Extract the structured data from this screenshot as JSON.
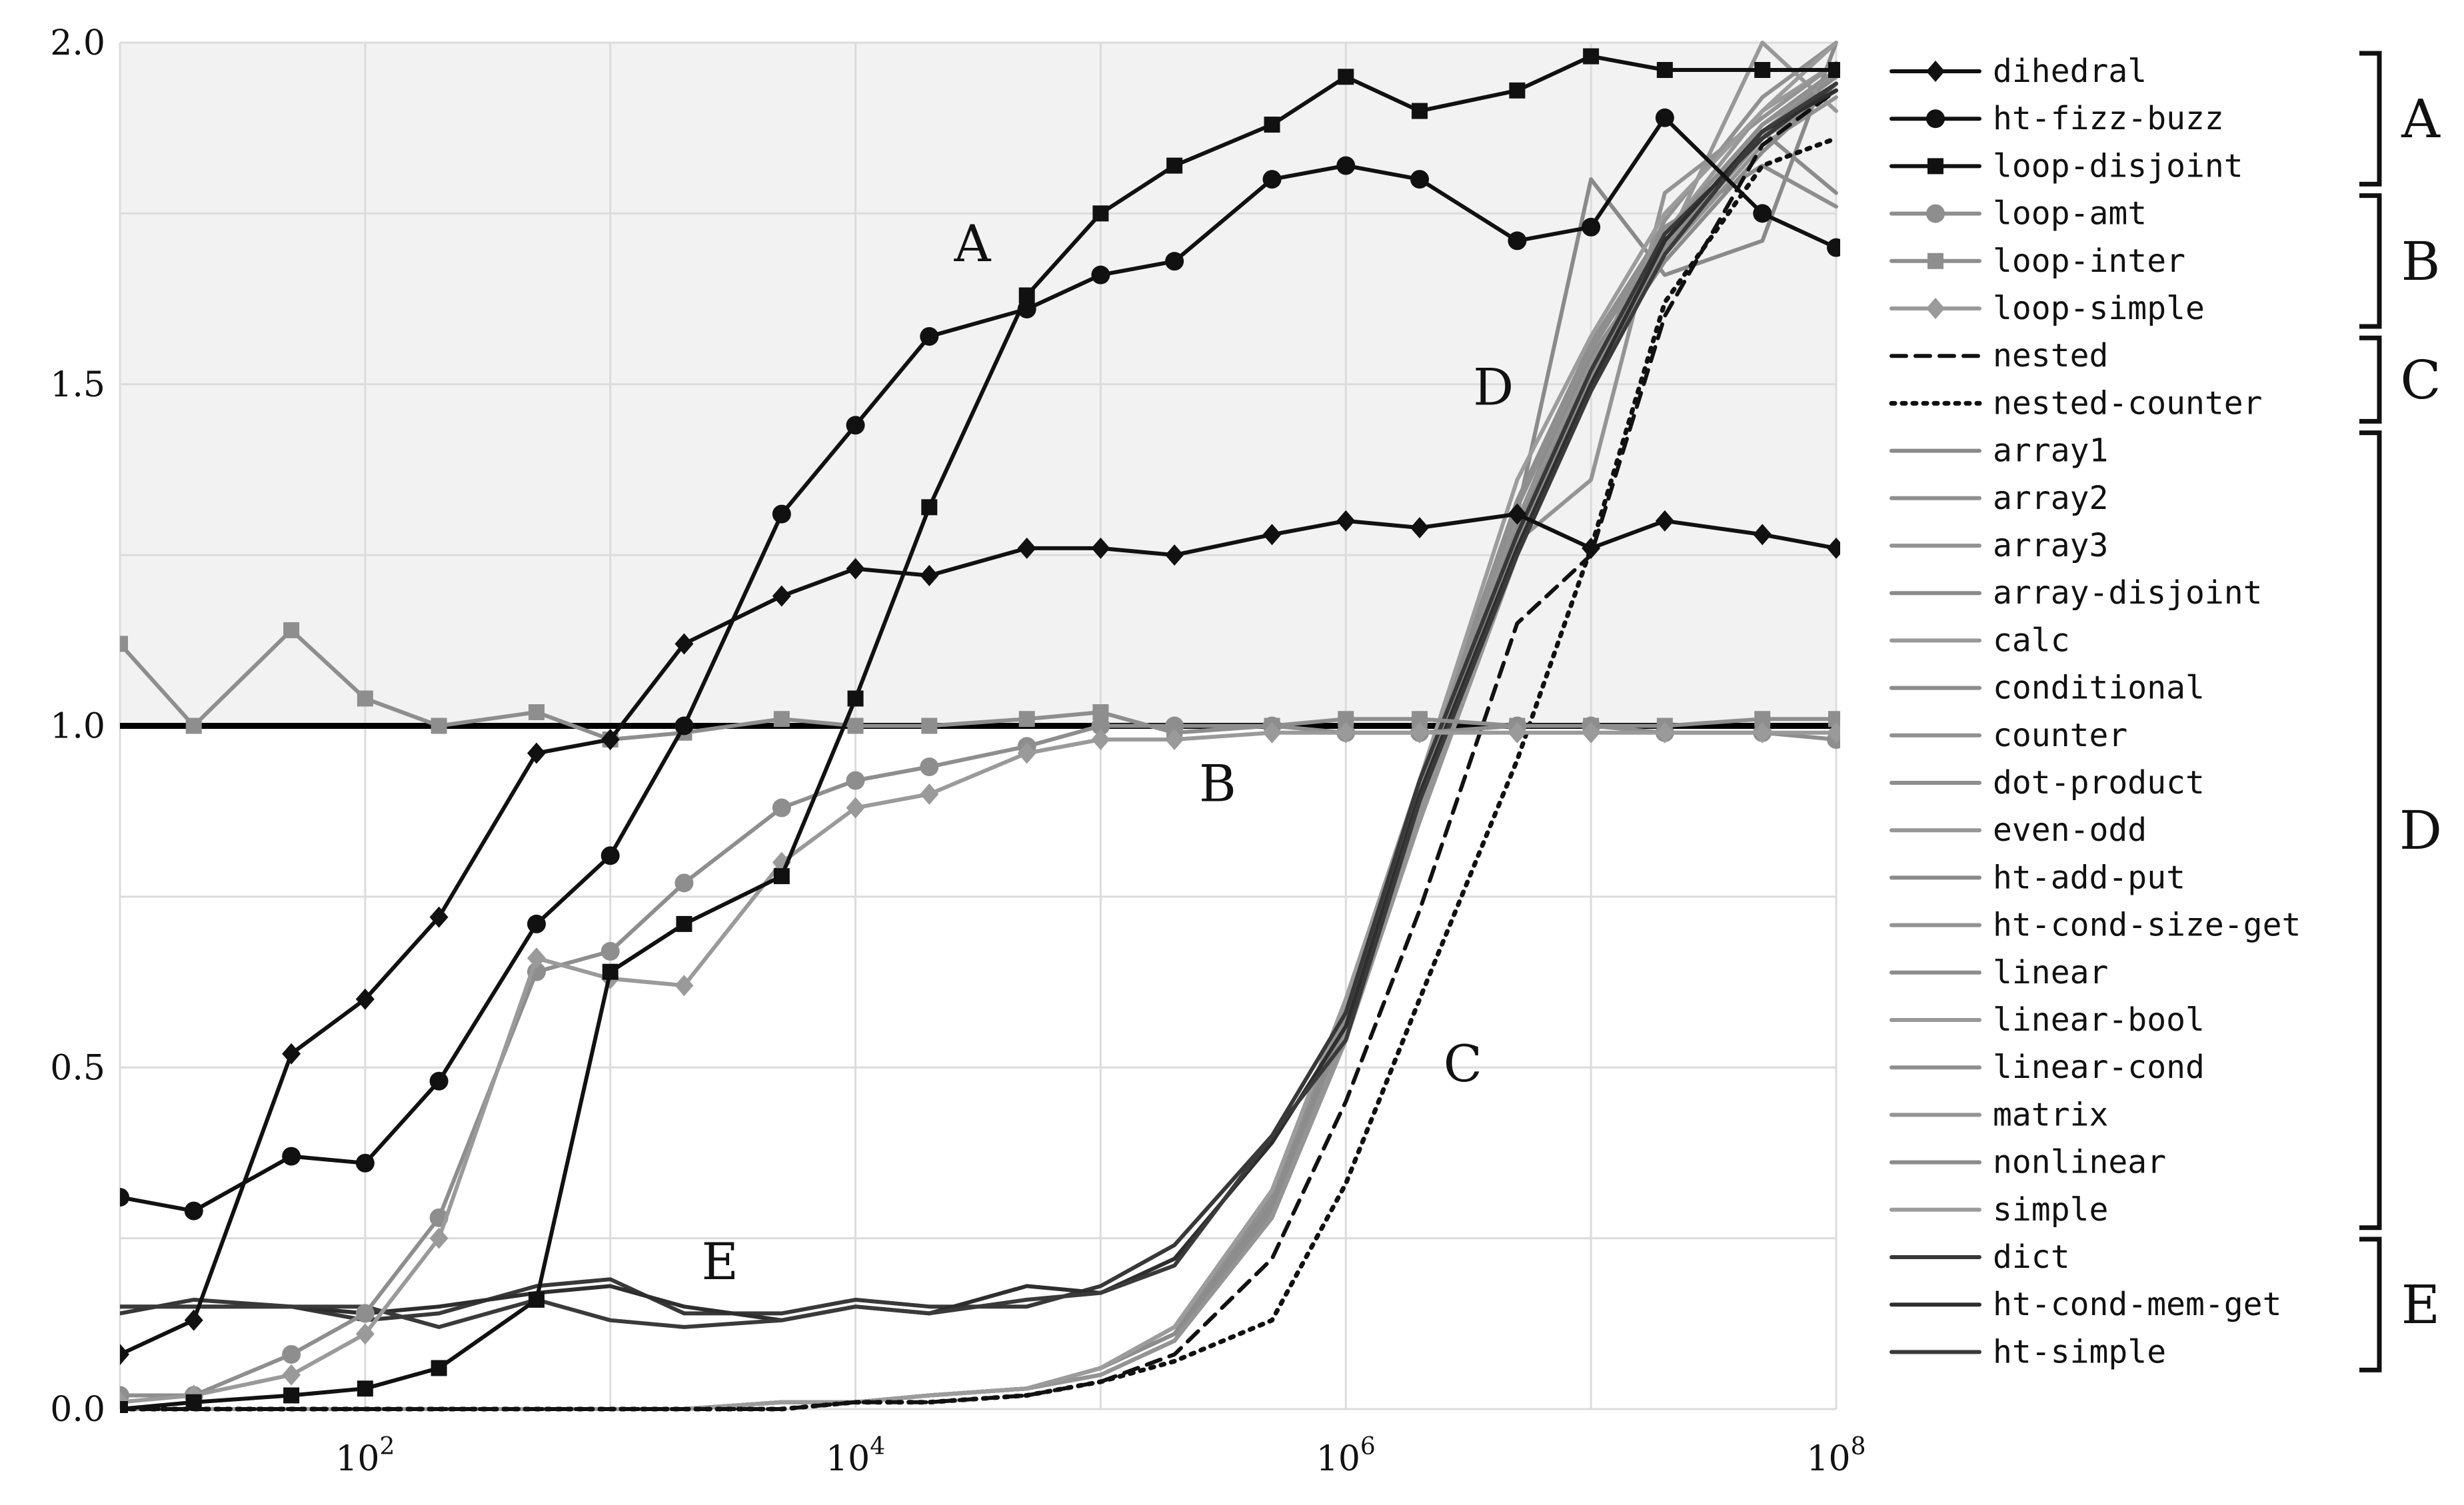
{
  "chart_data": {
    "type": "line",
    "x_scale": "log",
    "xlim": [
      10,
      100000000
    ],
    "ylim": [
      0,
      2
    ],
    "grid": true,
    "shaded_region_above": 1.0,
    "reference_line_y": 1.0,
    "legend_position": "right",
    "x_ticks": [
      "10^2",
      "10^4",
      "10^6",
      "10^8"
    ],
    "x_tick_values": [
      100,
      10000,
      1000000,
      100000000
    ],
    "y_ticks": [
      "0.0",
      "0.5",
      "1.0",
      "1.5",
      "2.0"
    ],
    "y_tick_values": [
      0,
      0.5,
      1.0,
      1.5,
      2.0
    ],
    "x": [
      10,
      20,
      50,
      100,
      200,
      500,
      1000,
      2000,
      5000,
      10000,
      20000,
      50000,
      100000,
      200000,
      500000,
      1000000,
      2000000,
      5000000,
      10000000,
      20000000,
      50000000,
      100000000
    ],
    "series": [
      {
        "name": "dihedral",
        "group": "A",
        "color": "#111111",
        "dash": "solid",
        "marker": "diamond",
        "values": [
          0.08,
          0.13,
          0.52,
          0.6,
          0.72,
          0.96,
          0.98,
          1.12,
          1.19,
          1.23,
          1.22,
          1.26,
          1.26,
          1.25,
          1.28,
          1.3,
          1.29,
          1.31,
          1.26,
          1.3,
          1.28,
          1.26
        ]
      },
      {
        "name": "ht-fizz-buzz",
        "group": "A",
        "color": "#111111",
        "dash": "solid",
        "marker": "circle",
        "values": [
          0.31,
          0.29,
          0.37,
          0.36,
          0.48,
          0.71,
          0.81,
          1.0,
          1.31,
          1.44,
          1.57,
          1.61,
          1.66,
          1.68,
          1.8,
          1.82,
          1.8,
          1.71,
          1.73,
          1.89,
          1.75,
          1.7
        ]
      },
      {
        "name": "loop-disjoint",
        "group": "A",
        "color": "#111111",
        "dash": "solid",
        "marker": "square",
        "values": [
          0.0,
          0.01,
          0.02,
          0.03,
          0.06,
          0.16,
          0.64,
          0.71,
          0.78,
          1.04,
          1.32,
          1.63,
          1.75,
          1.82,
          1.88,
          1.95,
          1.9,
          1.93,
          1.98,
          1.96,
          1.96,
          1.96
        ]
      },
      {
        "name": "loop-amt",
        "group": "B",
        "color": "#8e8e8e",
        "dash": "solid",
        "marker": "circle",
        "values": [
          0.02,
          0.02,
          0.08,
          0.14,
          0.28,
          0.64,
          0.67,
          0.77,
          0.88,
          0.92,
          0.94,
          0.97,
          1.0,
          1.0,
          1.0,
          0.99,
          0.99,
          1.0,
          1.0,
          0.99,
          0.99,
          0.98
        ]
      },
      {
        "name": "loop-inter",
        "group": "B",
        "color": "#8e8e8e",
        "dash": "solid",
        "marker": "square",
        "values": [
          1.12,
          1.0,
          1.14,
          1.04,
          1.0,
          1.02,
          0.98,
          0.99,
          1.01,
          1.0,
          1.0,
          1.01,
          1.02,
          0.99,
          1.0,
          1.01,
          1.01,
          1.0,
          1.0,
          1.0,
          1.01,
          1.01
        ]
      },
      {
        "name": "loop-simple",
        "group": "B",
        "color": "#9a9a9a",
        "dash": "solid",
        "marker": "diamond",
        "values": [
          0.01,
          0.02,
          0.05,
          0.11,
          0.25,
          0.66,
          0.63,
          0.62,
          0.8,
          0.88,
          0.9,
          0.96,
          0.98,
          0.98,
          0.99,
          0.99,
          0.99,
          0.99,
          0.99,
          0.99,
          0.99,
          0.99
        ]
      },
      {
        "name": "nested",
        "group": "C",
        "color": "#111111",
        "dash": "dashed",
        "marker": "none",
        "values": [
          0.0,
          0.0,
          0.0,
          0.0,
          0.0,
          0.0,
          0.0,
          0.0,
          0.0,
          0.01,
          0.01,
          0.02,
          0.04,
          0.08,
          0.22,
          0.45,
          0.73,
          1.15,
          1.25,
          1.6,
          1.85,
          1.93
        ]
      },
      {
        "name": "nested-counter",
        "group": "C",
        "color": "#111111",
        "dash": "dotted",
        "marker": "none",
        "values": [
          0.0,
          0.0,
          0.0,
          0.0,
          0.0,
          0.0,
          0.0,
          0.0,
          0.0,
          0.01,
          0.01,
          0.02,
          0.04,
          0.07,
          0.13,
          0.33,
          0.6,
          0.95,
          1.26,
          1.62,
          1.82,
          1.86
        ]
      },
      {
        "name": "array1",
        "group": "D",
        "color": "#8a8a8a",
        "dash": "solid",
        "marker": "none",
        "values": [
          0.0,
          0.0,
          0.0,
          0.0,
          0.0,
          0.0,
          0.0,
          0.0,
          0.01,
          0.01,
          0.02,
          0.03,
          0.06,
          0.12,
          0.31,
          0.58,
          0.9,
          1.3,
          1.55,
          1.72,
          1.88,
          1.95
        ]
      },
      {
        "name": "array2",
        "group": "D",
        "color": "#8f8f8f",
        "dash": "solid",
        "marker": "none",
        "values": [
          0.0,
          0.0,
          0.0,
          0.0,
          0.0,
          0.0,
          0.0,
          0.0,
          0.01,
          0.01,
          0.02,
          0.03,
          0.06,
          0.11,
          0.3,
          0.57,
          0.89,
          1.29,
          1.53,
          1.7,
          1.86,
          1.93
        ]
      },
      {
        "name": "array3",
        "group": "D",
        "color": "#949494",
        "dash": "solid",
        "marker": "none",
        "values": [
          0.0,
          0.0,
          0.0,
          0.0,
          0.0,
          0.0,
          0.0,
          0.0,
          0.01,
          0.01,
          0.02,
          0.03,
          0.05,
          0.1,
          0.29,
          0.56,
          0.87,
          1.27,
          1.52,
          1.69,
          1.85,
          1.92
        ]
      },
      {
        "name": "array-disjoint",
        "group": "D",
        "color": "#8a8a8a",
        "dash": "solid",
        "marker": "none",
        "values": [
          0.0,
          0.0,
          0.0,
          0.0,
          0.0,
          0.0,
          0.0,
          0.0,
          0.01,
          0.01,
          0.02,
          0.03,
          0.06,
          0.12,
          0.32,
          0.59,
          0.91,
          1.31,
          1.8,
          1.66,
          1.71,
          2.0
        ]
      },
      {
        "name": "calc",
        "group": "D",
        "color": "#999999",
        "dash": "solid",
        "marker": "none",
        "values": [
          0.0,
          0.0,
          0.0,
          0.0,
          0.0,
          0.0,
          0.0,
          0.0,
          0.01,
          0.01,
          0.02,
          0.03,
          0.06,
          0.11,
          0.29,
          0.55,
          0.88,
          1.28,
          1.5,
          1.72,
          1.9,
          1.97
        ]
      },
      {
        "name": "conditional",
        "group": "D",
        "color": "#8c8c8c",
        "dash": "solid",
        "marker": "none",
        "values": [
          0.0,
          0.0,
          0.0,
          0.0,
          0.0,
          0.0,
          0.0,
          0.0,
          0.01,
          0.01,
          0.02,
          0.03,
          0.06,
          0.12,
          0.31,
          0.58,
          0.9,
          1.3,
          1.54,
          1.7,
          1.87,
          1.78
        ]
      },
      {
        "name": "counter",
        "group": "D",
        "color": "#919191",
        "dash": "solid",
        "marker": "none",
        "values": [
          0.0,
          0.0,
          0.0,
          0.0,
          0.0,
          0.0,
          0.0,
          0.0,
          0.01,
          0.01,
          0.02,
          0.03,
          0.05,
          0.1,
          0.28,
          0.55,
          0.86,
          1.26,
          1.52,
          1.74,
          1.92,
          2.0
        ]
      },
      {
        "name": "dot-product",
        "group": "D",
        "color": "#8e8e8e",
        "dash": "solid",
        "marker": "none",
        "values": [
          0.0,
          0.0,
          0.0,
          0.0,
          0.0,
          0.0,
          0.0,
          0.0,
          0.01,
          0.01,
          0.02,
          0.03,
          0.06,
          0.12,
          0.32,
          0.6,
          0.92,
          1.33,
          1.56,
          1.73,
          1.82,
          1.76
        ]
      },
      {
        "name": "even-odd",
        "group": "D",
        "color": "#969696",
        "dash": "solid",
        "marker": "none",
        "values": [
          0.0,
          0.0,
          0.0,
          0.0,
          0.0,
          0.0,
          0.0,
          0.0,
          0.01,
          0.01,
          0.02,
          0.03,
          0.05,
          0.1,
          0.28,
          0.54,
          0.86,
          1.25,
          1.5,
          1.7,
          1.88,
          1.95
        ]
      },
      {
        "name": "ht-add-put",
        "group": "D",
        "color": "#8b8b8b",
        "dash": "solid",
        "marker": "none",
        "values": [
          0.0,
          0.0,
          0.0,
          0.0,
          0.0,
          0.0,
          0.0,
          0.0,
          0.01,
          0.01,
          0.02,
          0.03,
          0.06,
          0.11,
          0.3,
          0.57,
          0.89,
          1.29,
          1.52,
          1.68,
          1.84,
          1.94
        ]
      },
      {
        "name": "ht-cond-size-get",
        "group": "D",
        "color": "#939393",
        "dash": "solid",
        "marker": "none",
        "values": [
          0.0,
          0.0,
          0.0,
          0.0,
          0.0,
          0.0,
          0.0,
          0.0,
          0.01,
          0.01,
          0.02,
          0.03,
          0.06,
          0.12,
          0.31,
          0.58,
          0.9,
          1.3,
          1.53,
          1.71,
          1.86,
          1.96
        ]
      },
      {
        "name": "linear",
        "group": "D",
        "color": "#8d8d8d",
        "dash": "solid",
        "marker": "none",
        "values": [
          0.0,
          0.0,
          0.0,
          0.0,
          0.0,
          0.0,
          0.0,
          0.0,
          0.01,
          0.01,
          0.02,
          0.03,
          0.05,
          0.1,
          0.29,
          0.56,
          0.88,
          1.28,
          1.51,
          1.69,
          1.87,
          1.95
        ]
      },
      {
        "name": "linear-bool",
        "group": "D",
        "color": "#989898",
        "dash": "solid",
        "marker": "none",
        "values": [
          0.0,
          0.0,
          0.0,
          0.0,
          0.0,
          0.0,
          0.0,
          0.0,
          0.01,
          0.01,
          0.02,
          0.03,
          0.06,
          0.11,
          0.3,
          0.57,
          0.89,
          1.29,
          1.52,
          1.7,
          2.0,
          1.9
        ]
      },
      {
        "name": "linear-cond",
        "group": "D",
        "color": "#8f8f8f",
        "dash": "solid",
        "marker": "none",
        "values": [
          0.0,
          0.0,
          0.0,
          0.0,
          0.0,
          0.0,
          0.0,
          0.0,
          0.01,
          0.01,
          0.02,
          0.03,
          0.06,
          0.12,
          0.31,
          0.59,
          0.91,
          1.32,
          1.55,
          1.72,
          1.88,
          1.96
        ]
      },
      {
        "name": "matrix",
        "group": "D",
        "color": "#949494",
        "dash": "solid",
        "marker": "none",
        "values": [
          0.0,
          0.0,
          0.0,
          0.0,
          0.0,
          0.0,
          0.0,
          0.0,
          0.01,
          0.01,
          0.02,
          0.03,
          0.05,
          0.1,
          0.28,
          0.55,
          0.87,
          1.27,
          1.36,
          1.78,
          1.89,
          1.97
        ]
      },
      {
        "name": "nonlinear",
        "group": "D",
        "color": "#8c8c8c",
        "dash": "solid",
        "marker": "none",
        "values": [
          0.0,
          0.0,
          0.0,
          0.0,
          0.0,
          0.0,
          0.0,
          0.0,
          0.01,
          0.01,
          0.02,
          0.03,
          0.06,
          0.11,
          0.3,
          0.57,
          0.89,
          1.29,
          1.52,
          1.7,
          1.86,
          1.94
        ]
      },
      {
        "name": "simple",
        "group": "D",
        "color": "#9c9c9c",
        "dash": "solid",
        "marker": "none",
        "values": [
          0.0,
          0.0,
          0.0,
          0.0,
          0.0,
          0.0,
          0.0,
          0.0,
          0.01,
          0.01,
          0.02,
          0.03,
          0.06,
          0.12,
          0.32,
          0.6,
          0.92,
          1.36,
          1.57,
          1.75,
          1.9,
          2.0
        ]
      },
      {
        "name": "dict",
        "group": "E",
        "color": "#383838",
        "dash": "solid",
        "marker": "none",
        "values": [
          0.14,
          0.16,
          0.15,
          0.13,
          0.14,
          0.18,
          0.19,
          0.14,
          0.14,
          0.16,
          0.15,
          0.15,
          0.18,
          0.24,
          0.4,
          0.58,
          0.92,
          1.28,
          1.52,
          1.72,
          1.86,
          1.94
        ]
      },
      {
        "name": "ht-cond-mem-get",
        "group": "E",
        "color": "#2e2e2e",
        "dash": "solid",
        "marker": "none",
        "values": [
          0.15,
          0.15,
          0.15,
          0.14,
          0.15,
          0.17,
          0.18,
          0.15,
          0.13,
          0.15,
          0.14,
          0.18,
          0.17,
          0.22,
          0.39,
          0.56,
          0.9,
          1.26,
          1.5,
          1.71,
          1.87,
          1.93
        ]
      },
      {
        "name": "ht-simple",
        "group": "E",
        "color": "#3a3a3a",
        "dash": "solid",
        "marker": "none",
        "values": [
          0.15,
          0.15,
          0.15,
          0.15,
          0.12,
          0.16,
          0.13,
          0.12,
          0.13,
          0.15,
          0.14,
          0.16,
          0.17,
          0.21,
          0.4,
          0.54,
          0.89,
          1.25,
          1.49,
          1.69,
          1.87,
          1.94
        ]
      }
    ],
    "annotations": [
      {
        "text": "A",
        "x": 30000,
        "y": 1.68
      },
      {
        "text": "B",
        "x": 300000,
        "y": 0.89
      },
      {
        "text": "C",
        "x": 3000000,
        "y": 0.48
      },
      {
        "text": "D",
        "x": 4000000,
        "y": 1.47
      },
      {
        "text": "E",
        "x": 2800,
        "y": 0.19
      }
    ],
    "legend_groups": [
      {
        "label": "A",
        "first": 0,
        "last": 2
      },
      {
        "label": "B",
        "first": 3,
        "last": 5
      },
      {
        "label": "C",
        "first": 6,
        "last": 7
      },
      {
        "label": "D",
        "first": 8,
        "last": 24
      },
      {
        "label": "E",
        "first": 25,
        "last": 27
      }
    ]
  }
}
